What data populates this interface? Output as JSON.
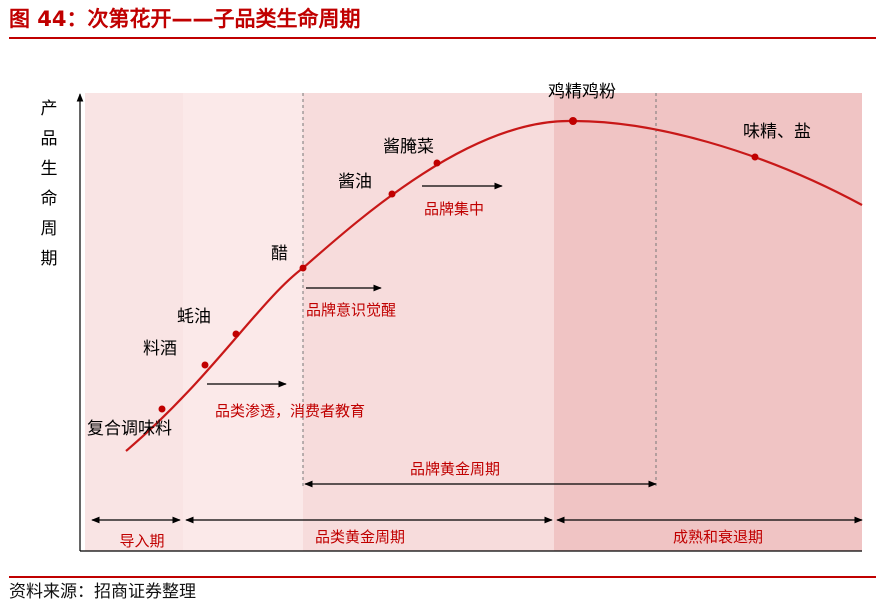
{
  "header": {
    "title": "图 44：次第花开——子品类生命周期"
  },
  "footer": {
    "source": "资料来源：招商证券整理"
  },
  "axis": {
    "y_label_chars": [
      "产",
      "品",
      "生",
      "命",
      "周",
      "期"
    ]
  },
  "products": [
    {
      "label": "复合调味料"
    },
    {
      "label": "料酒"
    },
    {
      "label": "蚝油"
    },
    {
      "label": "醋"
    },
    {
      "label": "酱油"
    },
    {
      "label": "酱腌菜"
    },
    {
      "label": "鸡精鸡粉"
    },
    {
      "label": "味精、盐"
    }
  ],
  "annotations": {
    "penetration": "品类渗透，消费者教育",
    "awareness": "品牌意识觉醒",
    "concentration": "品牌集中"
  },
  "spans": {
    "brand_golden": "品牌黄金周期",
    "intro": "导入期",
    "category_golden": "品类黄金周期",
    "decline": "成熟和衰退期"
  },
  "colors": {
    "accent": "#c00000",
    "curve": "#c81818",
    "zone_intro": "#f9e4e4",
    "zone_golden": "#fbe9e9",
    "zone_brand": "#f7dcdc",
    "zone_decline": "#f0c4c4"
  }
}
